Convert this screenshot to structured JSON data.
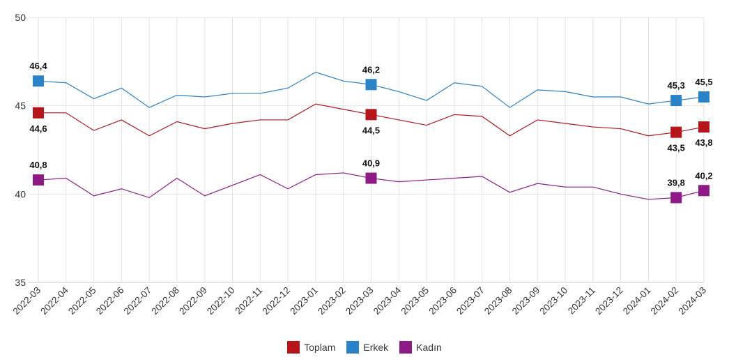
{
  "chart_data": {
    "type": "line",
    "title": "",
    "xlabel": "",
    "ylabel": "",
    "ylim": [
      35,
      50
    ],
    "yticks": [
      "35",
      "40",
      "45",
      "50"
    ],
    "grid": true,
    "legend_position": "bottom-center",
    "categories": [
      "2022-03",
      "2022-04",
      "2022-05",
      "2022-06",
      "2022-07",
      "2022-08",
      "2022-09",
      "2022-10",
      "2022-11",
      "2022-12",
      "2023-01",
      "2023-02",
      "2023-03",
      "2023-04",
      "2023-05",
      "2023-06",
      "2023-07",
      "2023-08",
      "2023-09",
      "2023-10",
      "2023-11",
      "2023-12",
      "2024-01",
      "2024-02",
      "2024-03"
    ],
    "labeled_indices": [
      0,
      12,
      23,
      24
    ],
    "series": [
      {
        "name": "Toplam",
        "color": "#b5151b",
        "label_pos": "below",
        "values": [
          44.6,
          44.6,
          43.6,
          44.2,
          43.3,
          44.1,
          43.7,
          44.0,
          44.2,
          44.2,
          45.1,
          44.8,
          44.5,
          44.2,
          43.9,
          44.5,
          44.4,
          43.3,
          44.2,
          44.0,
          43.8,
          43.7,
          43.3,
          43.5,
          43.8
        ]
      },
      {
        "name": "Erkek",
        "color": "#2a82c8",
        "label_pos": "above",
        "values": [
          46.4,
          46.3,
          45.4,
          46.0,
          44.9,
          45.6,
          45.5,
          45.7,
          45.7,
          46.0,
          46.9,
          46.4,
          46.2,
          45.8,
          45.3,
          46.3,
          46.1,
          44.9,
          45.9,
          45.8,
          45.5,
          45.5,
          45.1,
          45.3,
          45.5
        ]
      },
      {
        "name": "Kadın",
        "color": "#8e1a86",
        "label_pos": "above",
        "values": [
          40.8,
          40.9,
          39.9,
          40.3,
          39.8,
          40.9,
          39.9,
          40.5,
          41.1,
          40.3,
          41.1,
          41.2,
          40.9,
          40.7,
          40.8,
          40.9,
          41.0,
          40.1,
          40.6,
          40.4,
          40.4,
          40.0,
          39.7,
          39.8,
          40.2
        ]
      }
    ]
  }
}
